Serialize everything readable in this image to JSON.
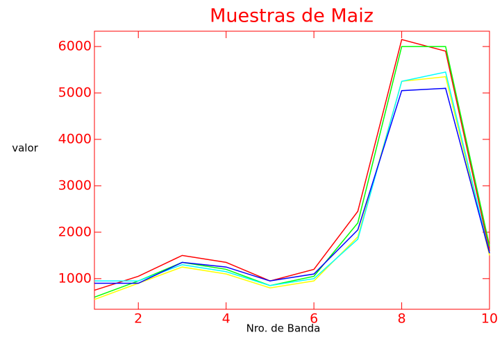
{
  "chart_data": {
    "type": "line",
    "title": "Muestras de Maiz",
    "x_label": "Nro. de Banda",
    "y_label": "valor",
    "x": [
      1,
      2,
      3,
      4,
      5,
      6,
      7,
      8,
      9,
      10
    ],
    "series": [
      {
        "color": "#ff0000",
        "values": [
          750,
          1050,
          1500,
          1350,
          950,
          1200,
          2450,
          6150,
          5900,
          1600
        ]
      },
      {
        "color": "#00ff00",
        "values": [
          600,
          950,
          1350,
          1200,
          850,
          1050,
          2200,
          6000,
          6000,
          1700
        ]
      },
      {
        "color": "#ffff00",
        "values": [
          550,
          900,
          1250,
          1100,
          800,
          950,
          1900,
          5250,
          5350,
          1500
        ]
      },
      {
        "color": "#00ffff",
        "values": [
          950,
          950,
          1300,
          1150,
          850,
          1000,
          1850,
          5250,
          5450,
          1550
        ]
      },
      {
        "color": "#0000ff",
        "values": [
          900,
          900,
          1350,
          1250,
          950,
          1100,
          2050,
          5050,
          5100,
          1550
        ]
      }
    ],
    "xlim": [
      1,
      10
    ],
    "xticks": [
      2,
      4,
      6,
      8,
      10
    ],
    "ylim": [
      340,
      6330
    ],
    "yticks": [
      1000,
      2000,
      3000,
      4000,
      5000,
      6000
    ],
    "axis_color": "#ff0000"
  }
}
